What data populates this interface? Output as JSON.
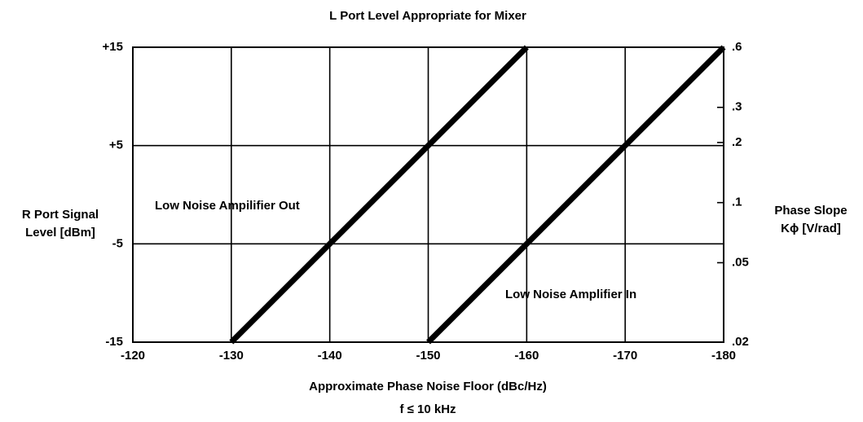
{
  "chart_data": {
    "type": "line",
    "title": "L Port Level Appropriate for Mixer",
    "ylabel": [
      "R Port Signal",
      "Level [dBm]"
    ],
    "y2label": [
      "Phase Slope",
      "Kϕ [V/rad]"
    ],
    "xlabel": "Approximate Phase Noise Floor (dBc/Hz)",
    "note": "f ≤ 10 kHz",
    "xlim": [
      -120,
      -180
    ],
    "xticks": [
      -120,
      -130,
      -140,
      -150,
      -160,
      -170,
      -180
    ],
    "ylim": [
      -15,
      15
    ],
    "yticks": [
      {
        "value": 15,
        "label": "+15"
      },
      {
        "value": 5,
        "label": "+5"
      },
      -5,
      -15
    ],
    "y2lim": [
      0.02,
      0.6
    ],
    "y2scale": "log",
    "y2ticks": [
      {
        "value": 0.6,
        "label": ".6"
      },
      {
        "value": 0.3,
        "label": ".3"
      },
      {
        "value": 0.2,
        "label": ".2"
      },
      {
        "value": 0.1,
        "label": ".1"
      },
      {
        "value": 0.05,
        "label": ".05"
      },
      {
        "value": 0.02,
        "label": ".02"
      }
    ],
    "grid": true,
    "series": [
      {
        "name": "Low Noise Ampilifier Out",
        "color": "#000000",
        "x": [
          -130,
          -160
        ],
        "values": [
          -15,
          15
        ]
      },
      {
        "name": "Low Noise Amplifier In",
        "color": "#000000",
        "x": [
          -150,
          -180
        ],
        "values": [
          -15,
          15
        ]
      }
    ]
  }
}
